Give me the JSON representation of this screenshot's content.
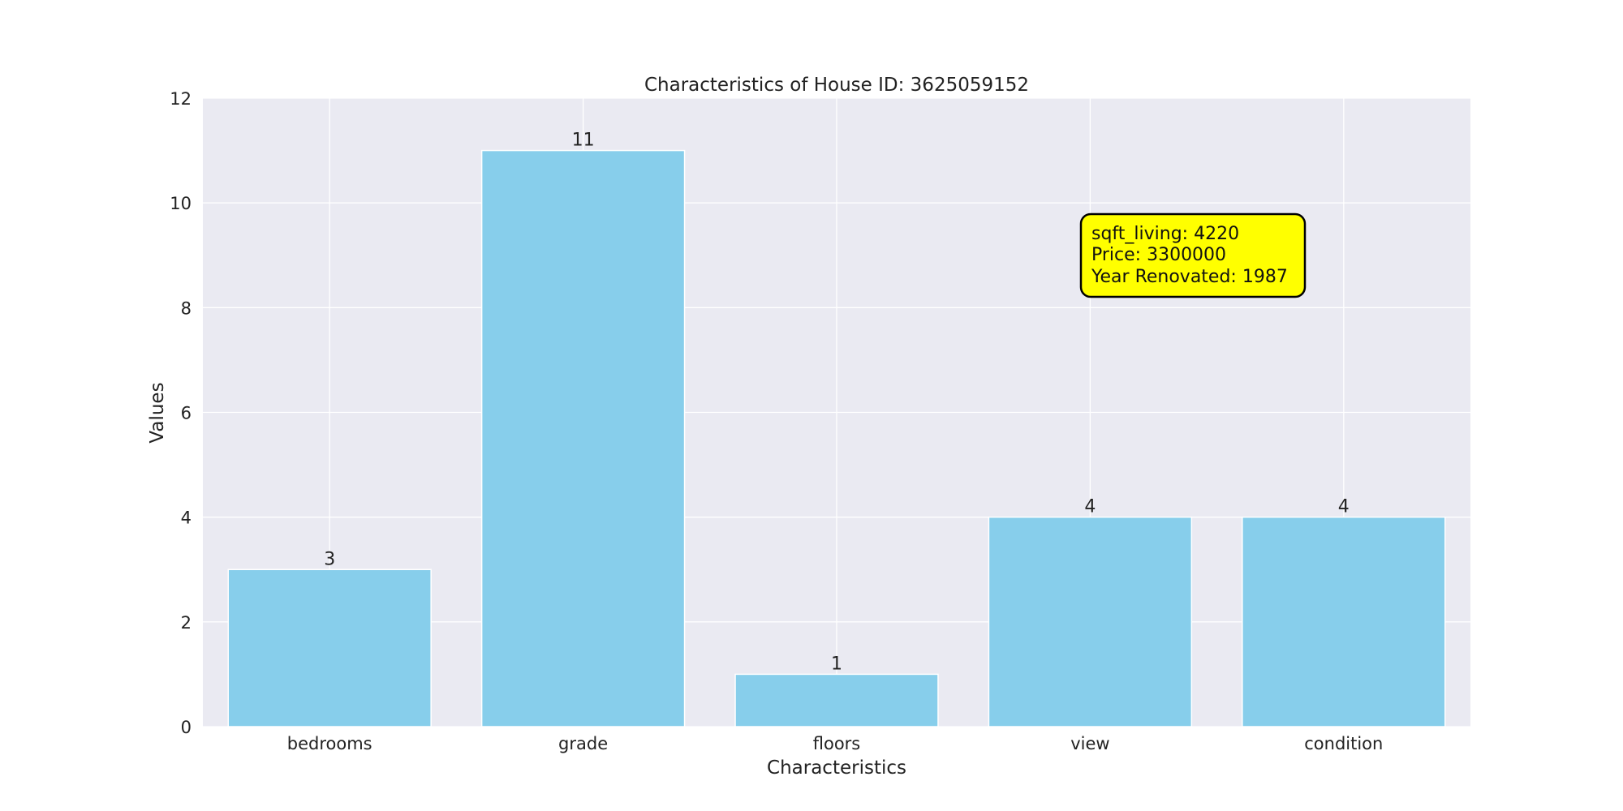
{
  "chart_data": {
    "type": "bar",
    "title": "Characteristics of House ID: 3625059152",
    "xlabel": "Characteristics",
    "ylabel": "Values",
    "categories": [
      "bedrooms",
      "grade",
      "floors",
      "view",
      "condition"
    ],
    "values": [
      3,
      11,
      1,
      4,
      4
    ],
    "data_labels": [
      "3",
      "11",
      "1",
      "4",
      "4"
    ],
    "ylim": [
      0,
      12
    ],
    "yticks": [
      0,
      2,
      4,
      6,
      8,
      10,
      12
    ],
    "ytick_labels": [
      "0",
      "2",
      "4",
      "6",
      "8",
      "10",
      "12"
    ],
    "grid": true,
    "annotation": {
      "lines": [
        "sqft_living: 4220",
        "Price: 3300000",
        "Year Renovated: 1987"
      ],
      "background": "#ffff00",
      "border": "#000000"
    },
    "colors": {
      "bar": "#87ceeb",
      "plot_background": "#eaeaf2",
      "grid": "#ffffff"
    }
  }
}
